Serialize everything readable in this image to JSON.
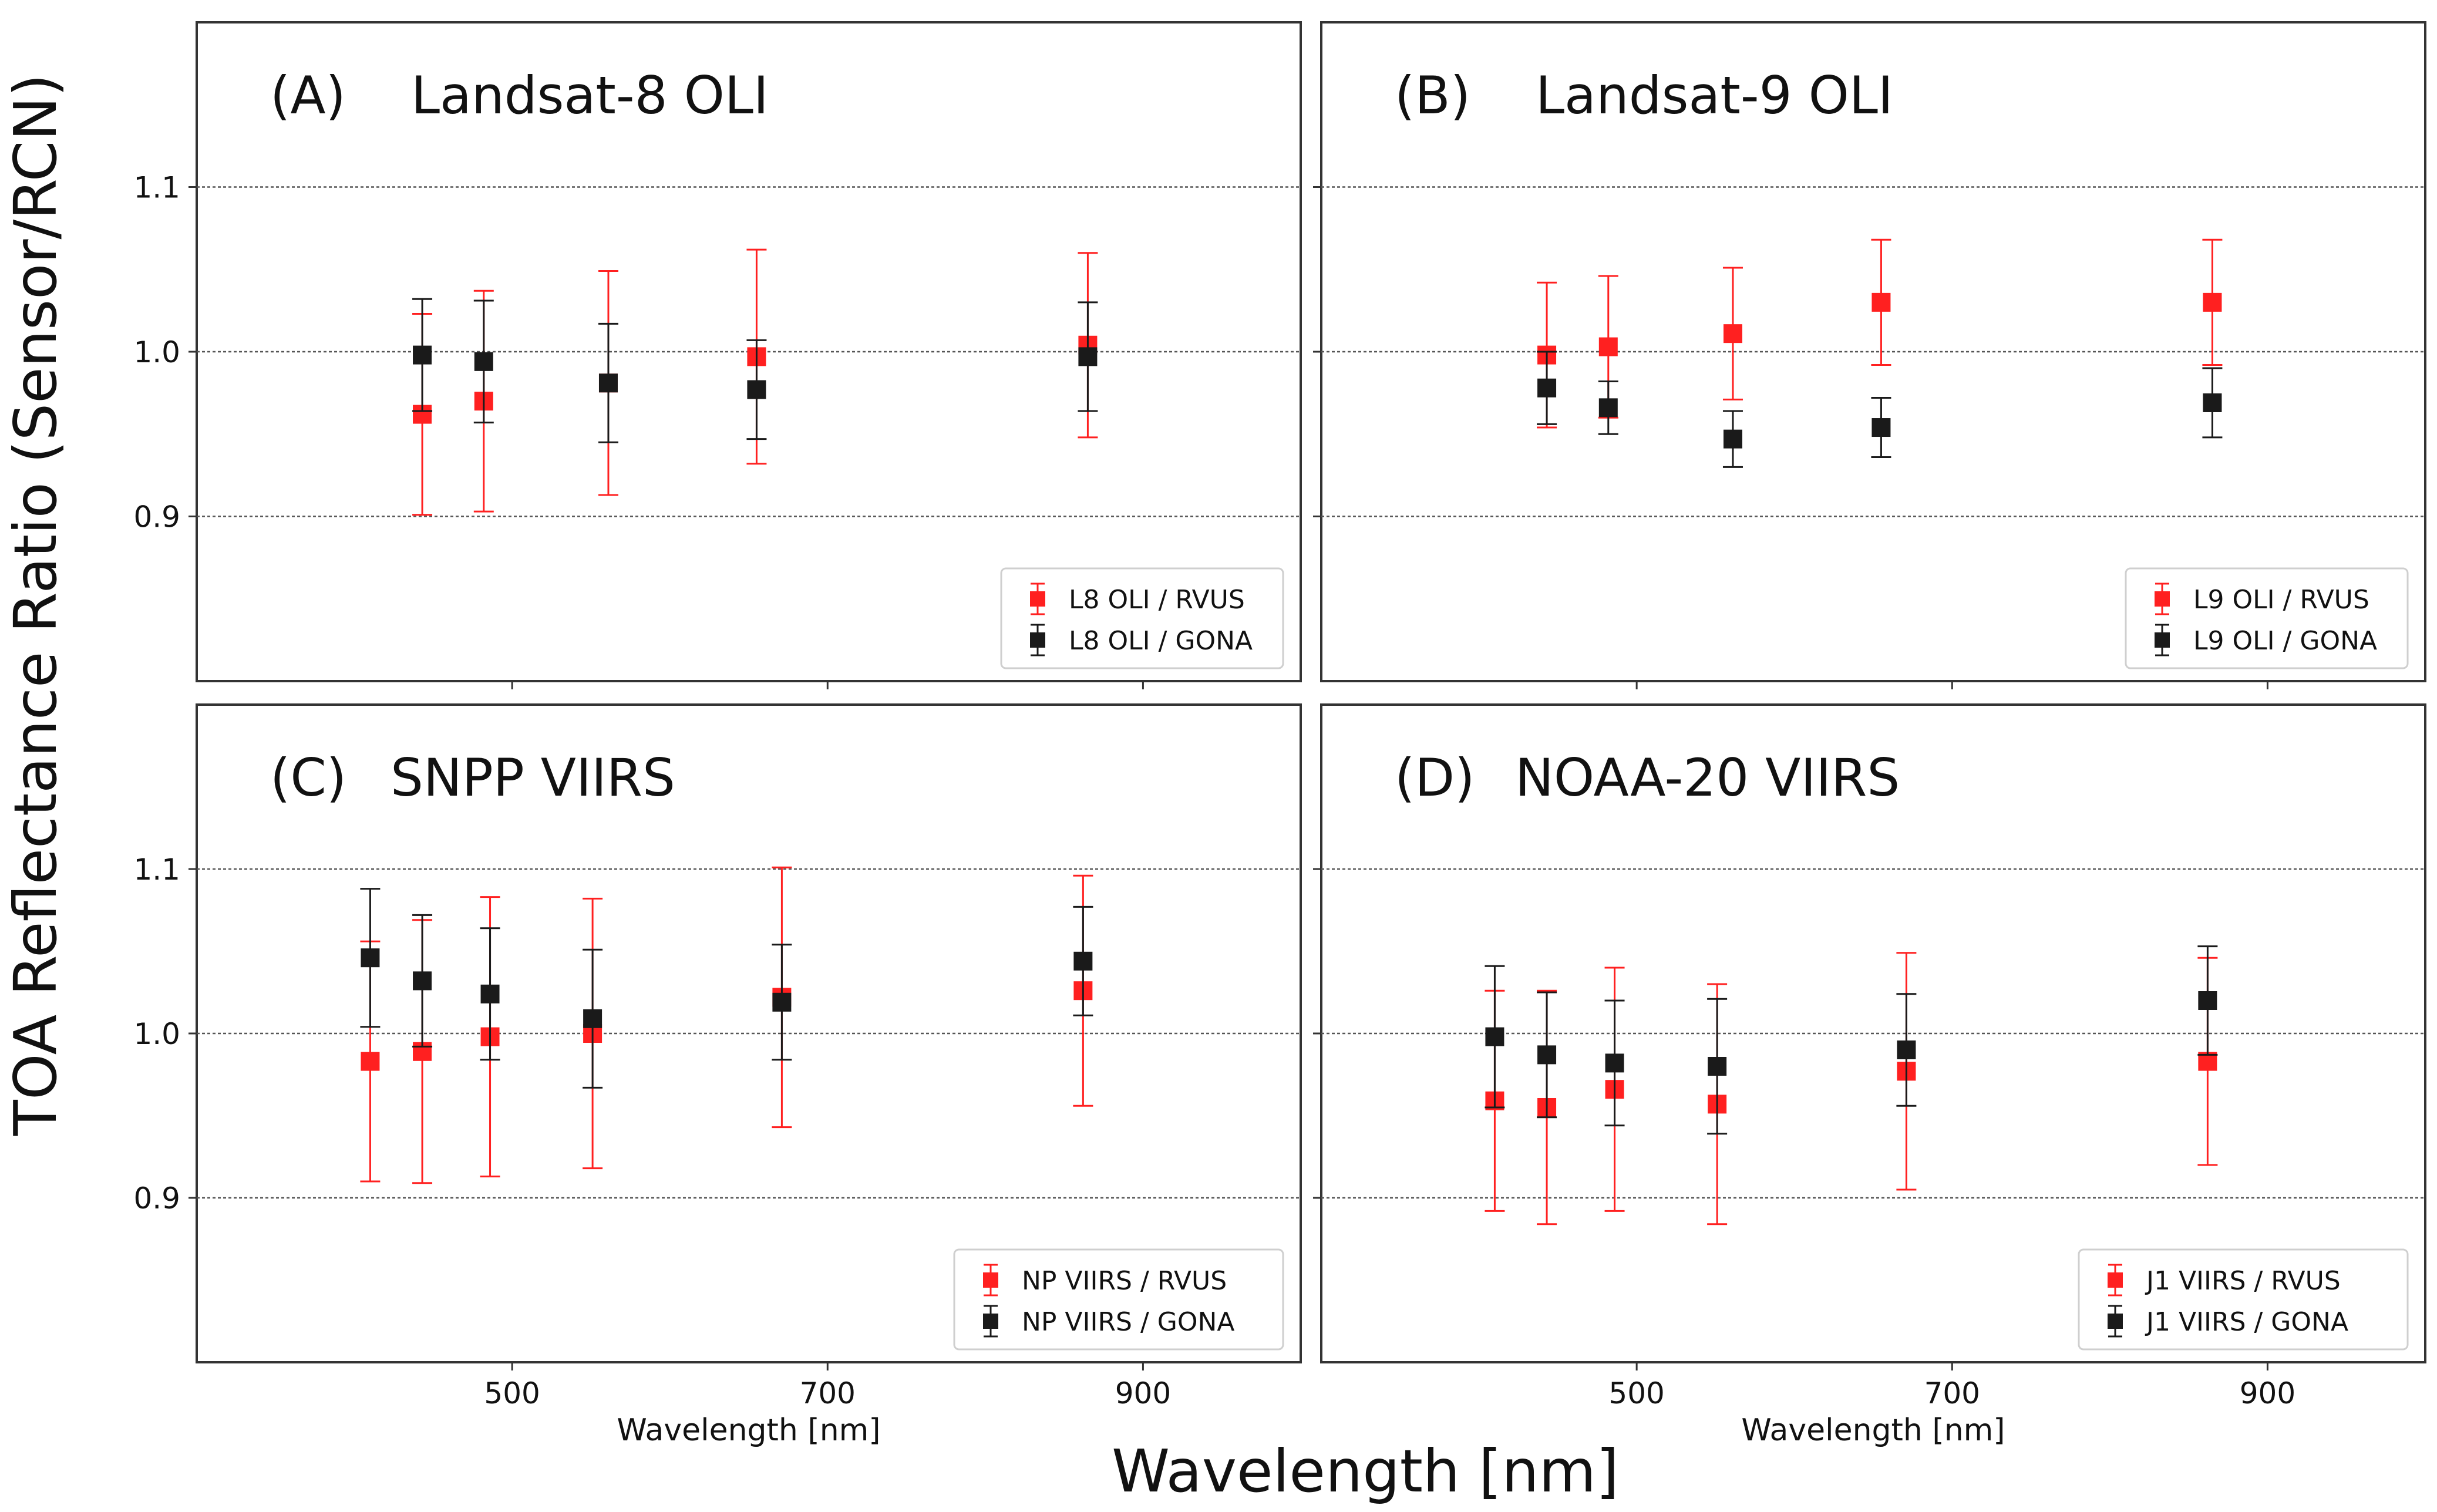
{
  "figure": {
    "ylabel": "TOA Reflectance Ratio (Sensor/RCN)",
    "xlabel": "Wavelength [nm]"
  },
  "colors": {
    "rvus": "#ff2020",
    "gona": "#1a1a1a",
    "frame": "#333333",
    "grid": "#555555"
  },
  "chart_data": [
    {
      "type": "scatter",
      "panel_label": "(A)",
      "title": "Landsat-8 OLI",
      "xlabel": "",
      "ylabel": "",
      "xlim": [
        300,
        1000
      ],
      "ylim": [
        0.8,
        1.2
      ],
      "xticks": [],
      "yticks": [
        "0.9",
        "1.0",
        "1.1"
      ],
      "grid_y": [
        0.9,
        1.0,
        1.1
      ],
      "legend_position": "lower-right",
      "series": [
        {
          "name": "L8 OLI / RVUS",
          "color": "#ff2020",
          "x": [
            443,
            482,
            561,
            655,
            865
          ],
          "y": [
            0.962,
            0.97,
            0.981,
            0.997,
            1.004
          ],
          "yerr": [
            0.061,
            0.067,
            0.068,
            0.065,
            0.056
          ]
        },
        {
          "name": "L8 OLI / GONA",
          "color": "#1a1a1a",
          "x": [
            443,
            482,
            561,
            655,
            865
          ],
          "y": [
            0.998,
            0.994,
            0.981,
            0.977,
            0.997
          ],
          "yerr": [
            0.034,
            0.037,
            0.036,
            0.03,
            0.033
          ]
        }
      ]
    },
    {
      "type": "scatter",
      "panel_label": "(B)",
      "title": "Landsat-9 OLI",
      "xlabel": "",
      "ylabel": "",
      "xlim": [
        300,
        1000
      ],
      "ylim": [
        0.8,
        1.2
      ],
      "xticks": [],
      "yticks": [],
      "grid_y": [
        0.9,
        1.0,
        1.1
      ],
      "legend_position": "lower-right",
      "series": [
        {
          "name": "L9 OLI / RVUS",
          "color": "#ff2020",
          "x": [
            443,
            482,
            561,
            655,
            865
          ],
          "y": [
            0.998,
            1.003,
            1.011,
            1.03,
            1.03
          ],
          "yerr": [
            0.044,
            0.043,
            0.04,
            0.038,
            0.038
          ]
        },
        {
          "name": "L9 OLI / GONA",
          "color": "#1a1a1a",
          "x": [
            443,
            482,
            561,
            655,
            865
          ],
          "y": [
            0.978,
            0.966,
            0.947,
            0.954,
            0.969
          ],
          "yerr": [
            0.022,
            0.016,
            0.017,
            0.018,
            0.021
          ]
        }
      ]
    },
    {
      "type": "scatter",
      "panel_label": "(C)",
      "title": "SNPP VIIRS",
      "xlabel": "Wavelength [nm]",
      "ylabel": "",
      "xlim": [
        300,
        1000
      ],
      "ylim": [
        0.8,
        1.2
      ],
      "xticks": [
        500,
        700,
        900
      ],
      "yticks": [
        "0.9",
        "1.0",
        "1.1"
      ],
      "grid_y": [
        0.9,
        1.0,
        1.1
      ],
      "legend_position": "lower-right",
      "series": [
        {
          "name": "NP VIIRS / RVUS",
          "color": "#ff2020",
          "x": [
            410,
            443,
            486,
            551,
            671,
            862
          ],
          "y": [
            0.983,
            0.989,
            0.998,
            1.0,
            1.022,
            1.026
          ],
          "yerr": [
            0.073,
            0.08,
            0.085,
            0.082,
            0.079,
            0.07
          ]
        },
        {
          "name": "NP VIIRS / GONA",
          "color": "#1a1a1a",
          "x": [
            410,
            443,
            486,
            551,
            671,
            862
          ],
          "y": [
            1.046,
            1.032,
            1.024,
            1.009,
            1.019,
            1.044
          ],
          "yerr": [
            0.042,
            0.04,
            0.04,
            0.042,
            0.035,
            0.033
          ]
        }
      ]
    },
    {
      "type": "scatter",
      "panel_label": "(D)",
      "title": "NOAA-20 VIIRS",
      "xlabel": "Wavelength [nm]",
      "ylabel": "",
      "xlim": [
        300,
        1000
      ],
      "ylim": [
        0.8,
        1.2
      ],
      "xticks": [
        500,
        700,
        900
      ],
      "yticks": [],
      "grid_y": [
        0.9,
        1.0,
        1.1
      ],
      "legend_position": "lower-right",
      "series": [
        {
          "name": "J1 VIIRS / RVUS",
          "color": "#ff2020",
          "x": [
            410,
            443,
            486,
            551,
            671,
            862
          ],
          "y": [
            0.959,
            0.955,
            0.966,
            0.957,
            0.977,
            0.983
          ],
          "yerr": [
            0.067,
            0.071,
            0.074,
            0.073,
            0.072,
            0.063
          ]
        },
        {
          "name": "J1 VIIRS / GONA",
          "color": "#1a1a1a",
          "x": [
            410,
            443,
            486,
            551,
            671,
            862
          ],
          "y": [
            0.998,
            0.987,
            0.982,
            0.98,
            0.99,
            1.02
          ],
          "yerr": [
            0.043,
            0.038,
            0.038,
            0.041,
            0.034,
            0.033
          ]
        }
      ]
    }
  ]
}
